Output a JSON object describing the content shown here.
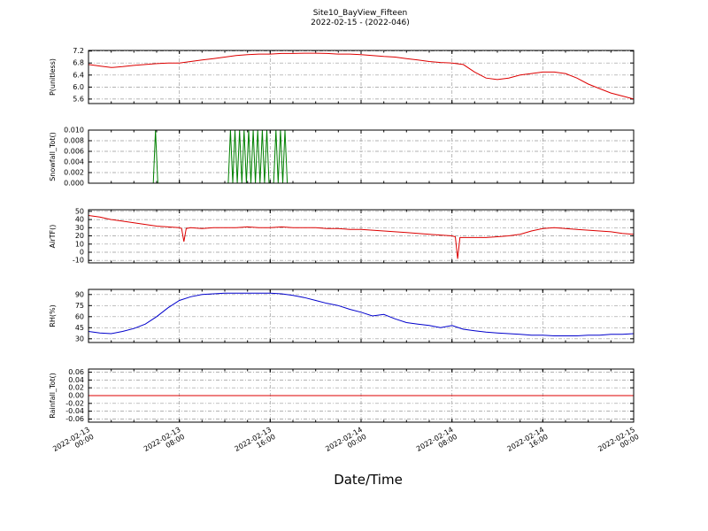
{
  "title": {
    "line1": "Site10_BayView_Fifteen",
    "line2": "2022-02-15 - (2022-046)"
  },
  "xlabel": "Date/Time",
  "x_axis": {
    "min": 0,
    "max": 48,
    "unit": "hours since 2022-02-13 00:00",
    "tick_values": [
      0,
      8,
      16,
      24,
      32,
      40,
      48
    ],
    "tick_labels": [
      {
        "date": "2022-02-13",
        "time": "00:00"
      },
      {
        "date": "2022-02-13",
        "time": "08:00"
      },
      {
        "date": "2022-02-13",
        "time": "16:00"
      },
      {
        "date": "2022-02-14",
        "time": "00:00"
      },
      {
        "date": "2022-02-14",
        "time": "08:00"
      },
      {
        "date": "2022-02-14",
        "time": "16:00"
      },
      {
        "date": "2022-02-15",
        "time": "00:00"
      }
    ],
    "minor_step": 2
  },
  "chart_data": [
    {
      "type": "line",
      "name": "p-line",
      "ylabel": "P(unitless)",
      "color": "#dd0000",
      "ylim": [
        5.45,
        7.22
      ],
      "ytick_values": [
        5.6,
        6.0,
        6.4,
        6.8,
        7.2
      ],
      "ytick_labels": [
        "5.6",
        "6.0",
        "6.4",
        "6.8",
        "7.2"
      ],
      "x": [
        0,
        1,
        2,
        3,
        4,
        5,
        6,
        7,
        8,
        9,
        10,
        11,
        12,
        13,
        14,
        15,
        16,
        17,
        18,
        19,
        20,
        21,
        22,
        23,
        24,
        25,
        26,
        27,
        28,
        29,
        30,
        31,
        32,
        33,
        34,
        35,
        36,
        37,
        38,
        39,
        40,
        41,
        42,
        43,
        44,
        45,
        46,
        47,
        48
      ],
      "y": [
        6.75,
        6.7,
        6.65,
        6.68,
        6.72,
        6.75,
        6.78,
        6.8,
        6.8,
        6.85,
        6.9,
        6.95,
        7.0,
        7.05,
        7.08,
        7.1,
        7.1,
        7.12,
        7.12,
        7.13,
        7.13,
        7.12,
        7.1,
        7.1,
        7.08,
        7.05,
        7.02,
        7.0,
        6.95,
        6.9,
        6.85,
        6.82,
        6.8,
        6.75,
        6.5,
        6.3,
        6.25,
        6.3,
        6.4,
        6.45,
        6.5,
        6.5,
        6.45,
        6.3,
        6.1,
        5.95,
        5.8,
        5.7,
        5.6
      ]
    },
    {
      "type": "line",
      "name": "snowfall-line",
      "ylabel": "Snowfall_Tot()",
      "color": "#008000",
      "ylim": [
        0,
        0.01
      ],
      "ytick_values": [
        0,
        0.002,
        0.004,
        0.006,
        0.008,
        0.01
      ],
      "ytick_labels": [
        "0.000",
        "0.002",
        "0.004",
        "0.006",
        "0.008",
        "0.010"
      ],
      "x": [
        0,
        5.7,
        5.9,
        6.1,
        12.3,
        12.5,
        12.7,
        12.9,
        13.1,
        13.3,
        13.5,
        13.7,
        13.9,
        14.1,
        14.3,
        14.5,
        14.7,
        14.9,
        15.1,
        15.3,
        15.5,
        15.7,
        15.9,
        16.3,
        16.5,
        16.7,
        16.9,
        17.1,
        17.3,
        17.5,
        48
      ],
      "y": [
        0,
        0,
        0.01,
        0,
        0,
        0.01,
        0,
        0.01,
        0,
        0.01,
        0,
        0.01,
        0,
        0.01,
        0,
        0.01,
        0,
        0.01,
        0,
        0.01,
        0,
        0.01,
        0,
        0,
        0.01,
        0,
        0.01,
        0,
        0.01,
        0,
        0
      ]
    },
    {
      "type": "line",
      "name": "airtf-line",
      "ylabel": "AirTF()",
      "color": "#dd0000",
      "ylim": [
        -13,
        52
      ],
      "ytick_values": [
        -10,
        0,
        10,
        20,
        30,
        40,
        50
      ],
      "ytick_labels": [
        "-10",
        "0",
        "10",
        "20",
        "30",
        "40",
        "50"
      ],
      "x": [
        0,
        1,
        2,
        3,
        4,
        5,
        6,
        7,
        8,
        8.2,
        8.4,
        8.6,
        9,
        10,
        11,
        12,
        13,
        14,
        15,
        16,
        17,
        18,
        19,
        20,
        21,
        22,
        23,
        24,
        25,
        26,
        27,
        28,
        29,
        30,
        31,
        32,
        32.3,
        32.5,
        32.7,
        33,
        34,
        35,
        36,
        37,
        38,
        39,
        40,
        41,
        42,
        43,
        44,
        45,
        46,
        47,
        48
      ],
      "y": [
        45,
        43,
        40,
        38,
        36,
        34,
        32,
        31,
        30,
        29,
        13,
        29,
        30,
        29,
        30,
        30,
        30,
        31,
        30,
        30,
        31,
        30,
        30,
        30,
        29,
        29,
        28,
        28,
        27,
        26,
        25,
        24,
        23,
        22,
        21,
        20,
        19,
        -8,
        18,
        18,
        18,
        18,
        19,
        20,
        22,
        26,
        29,
        30,
        29,
        28,
        27,
        26,
        25,
        23,
        22
      ]
    },
    {
      "type": "line",
      "name": "rh-line",
      "ylabel": "RH(%)",
      "color": "#0000cc",
      "ylim": [
        25,
        97
      ],
      "ytick_values": [
        30,
        45,
        60,
        75,
        90
      ],
      "ytick_labels": [
        "30",
        "45",
        "60",
        "75",
        "90"
      ],
      "x": [
        0,
        1,
        2,
        3,
        4,
        5,
        6,
        7,
        8,
        9,
        10,
        11,
        12,
        13,
        14,
        15,
        16,
        17,
        18,
        19,
        20,
        21,
        22,
        23,
        24,
        25,
        26,
        27,
        28,
        29,
        30,
        31,
        32,
        33,
        34,
        35,
        36,
        37,
        38,
        39,
        40,
        41,
        42,
        43,
        44,
        45,
        46,
        47,
        48
      ],
      "y": [
        40,
        38,
        37,
        40,
        44,
        50,
        60,
        72,
        82,
        87,
        90,
        91,
        92,
        92,
        92,
        92,
        92,
        91,
        89,
        86,
        82,
        78,
        75,
        70,
        66,
        61,
        63,
        57,
        52,
        50,
        48,
        45,
        48,
        43,
        41,
        39,
        38,
        37,
        36,
        35,
        35,
        34,
        34,
        34,
        35,
        35,
        36,
        36,
        37
      ]
    },
    {
      "type": "line",
      "name": "rainfall-line",
      "ylabel": "Rainfall_Tot()",
      "color": "#dd0000",
      "ylim": [
        -0.068,
        0.068
      ],
      "ytick_values": [
        -0.06,
        -0.04,
        -0.02,
        0,
        0.02,
        0.04,
        0.06
      ],
      "ytick_labels": [
        "-0.06",
        "-0.04",
        "-0.02",
        "0.00",
        "0.02",
        "0.04",
        "0.06"
      ],
      "x": [
        0,
        48
      ],
      "y": [
        0,
        0
      ]
    }
  ]
}
